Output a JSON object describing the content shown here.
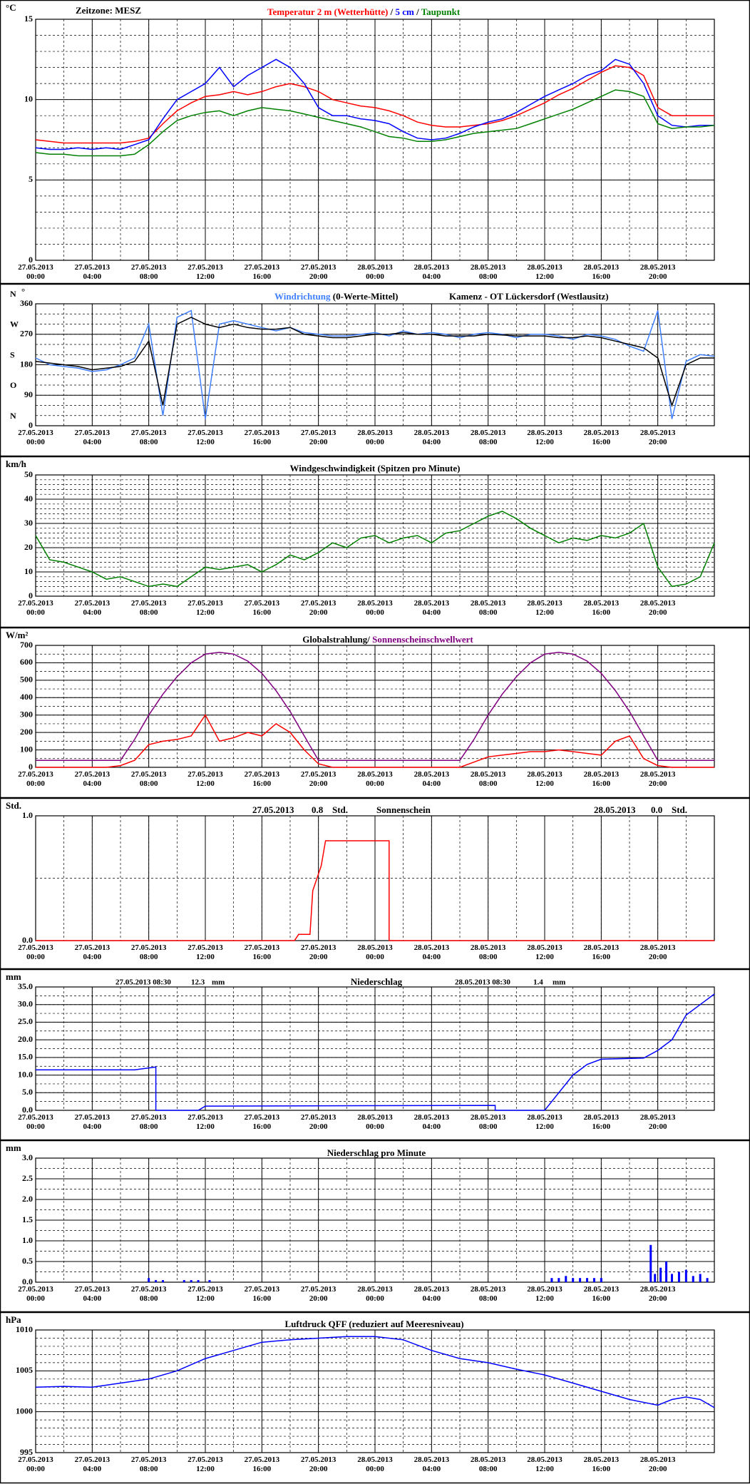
{
  "xaxis": {
    "xlim": [
      0,
      48
    ],
    "minor_step": 2,
    "xticks": [
      {
        "value": 0,
        "label": "27.05.2013\n00:00"
      },
      {
        "value": 4,
        "label": "27.05.2013\n04:00"
      },
      {
        "value": 8,
        "label": "27.05.2013\n08:00"
      },
      {
        "value": 12,
        "label": "27.05.2013\n12:00"
      },
      {
        "value": 16,
        "label": "27.05.2013\n16:00"
      },
      {
        "value": 20,
        "label": "27.05.2013\n20:00"
      },
      {
        "value": 24,
        "label": "28.05.2013\n00:00"
      },
      {
        "value": 28,
        "label": "28.05.2013\n04:00"
      },
      {
        "value": 32,
        "label": "28.05.2013\n08:00"
      },
      {
        "value": 36,
        "label": "28.05.2013\n12:00"
      },
      {
        "value": 40,
        "label": "28.05.2013\n16:00"
      },
      {
        "value": 44,
        "label": "28.05.2013\n20:00"
      }
    ]
  },
  "chart_data": [
    {
      "type": "line",
      "unit": "°C",
      "timezone": "Zeitzone: MESZ",
      "legend_separator": "/",
      "ylim": [
        0,
        15
      ],
      "yticks": [
        0,
        5,
        10,
        15
      ],
      "minor_grid_step": 1,
      "x": [
        0,
        1,
        2,
        3,
        4,
        5,
        6,
        7,
        8,
        9,
        10,
        11,
        12,
        13,
        14,
        15,
        16,
        17,
        18,
        19,
        20,
        21,
        22,
        23,
        24,
        25,
        26,
        27,
        28,
        29,
        30,
        31,
        32,
        33,
        34,
        35,
        36,
        37,
        38,
        39,
        40,
        41,
        42,
        43,
        44,
        45,
        46,
        47,
        48
      ],
      "series": [
        {
          "name": "Temperatur 2 m (Wetterhütte)",
          "color": "#ff0000",
          "values": [
            7.5,
            7.4,
            7.3,
            7.3,
            7.3,
            7.3,
            7.3,
            7.4,
            7.6,
            8.5,
            9.3,
            9.8,
            10.2,
            10.3,
            10.5,
            10.3,
            10.5,
            10.8,
            11.0,
            10.8,
            10.5,
            10.0,
            9.8,
            9.6,
            9.5,
            9.3,
            9.0,
            8.6,
            8.4,
            8.3,
            8.3,
            8.4,
            8.5,
            8.7,
            9.0,
            9.4,
            9.8,
            10.3,
            10.7,
            11.2,
            11.7,
            12.1,
            12.0,
            11.5,
            9.5,
            9.0,
            9.0,
            9.0,
            9.0
          ]
        },
        {
          "name": "5 cm",
          "color": "#0000ff",
          "values": [
            7.0,
            6.9,
            6.9,
            7.0,
            6.9,
            7.0,
            6.9,
            7.2,
            7.5,
            8.8,
            10.0,
            10.5,
            11.0,
            12.0,
            10.8,
            11.5,
            12.0,
            12.5,
            12.0,
            11.0,
            9.5,
            9.0,
            9.0,
            8.8,
            8.7,
            8.5,
            8.0,
            7.6,
            7.5,
            7.6,
            7.9,
            8.3,
            8.6,
            8.8,
            9.2,
            9.7,
            10.2,
            10.6,
            11.0,
            11.5,
            11.8,
            12.5,
            12.2,
            11.0,
            9.0,
            8.4,
            8.3,
            8.4,
            8.4
          ]
        },
        {
          "name": "Taupunkt",
          "color": "#008000",
          "values": [
            6.7,
            6.6,
            6.6,
            6.5,
            6.5,
            6.5,
            6.5,
            6.6,
            7.2,
            8.0,
            8.7,
            9.0,
            9.2,
            9.3,
            9.0,
            9.3,
            9.5,
            9.4,
            9.3,
            9.1,
            8.9,
            8.7,
            8.5,
            8.3,
            8.0,
            7.7,
            7.6,
            7.4,
            7.4,
            7.5,
            7.7,
            7.9,
            8.0,
            8.1,
            8.2,
            8.5,
            8.8,
            9.1,
            9.4,
            9.8,
            10.2,
            10.6,
            10.5,
            10.2,
            8.5,
            8.2,
            8.3,
            8.3,
            8.4
          ]
        }
      ]
    },
    {
      "type": "line",
      "unit": "°",
      "station": "Kamenz - OT Lückersdorf (Westlausitz)",
      "ylim": [
        0,
        360
      ],
      "yticks": [
        0,
        90,
        180,
        270,
        360
      ],
      "minor_grid_step": 30,
      "direction_labels": [
        {
          "value": 0,
          "label": "N"
        },
        {
          "value": 90,
          "label": "O"
        },
        {
          "value": 180,
          "label": "S"
        },
        {
          "value": 270,
          "label": "W"
        },
        {
          "value": 360,
          "label": "N"
        }
      ],
      "x": [
        0,
        1,
        2,
        3,
        4,
        5,
        6,
        7,
        8,
        9,
        10,
        11,
        12,
        13,
        14,
        15,
        16,
        17,
        18,
        19,
        20,
        21,
        22,
        23,
        24,
        25,
        26,
        27,
        28,
        29,
        30,
        31,
        32,
        33,
        34,
        35,
        36,
        37,
        38,
        39,
        40,
        41,
        42,
        43,
        44,
        45,
        46,
        47,
        48
      ],
      "series": [
        {
          "name": "Windrichtung",
          "color": "#4080ff",
          "values": [
            200,
            180,
            175,
            170,
            160,
            165,
            180,
            200,
            300,
            30,
            320,
            340,
            20,
            300,
            310,
            300,
            290,
            280,
            290,
            275,
            270,
            265,
            265,
            270,
            275,
            265,
            280,
            270,
            275,
            270,
            260,
            270,
            275,
            270,
            260,
            270,
            270,
            265,
            255,
            270,
            265,
            255,
            235,
            220,
            340,
            20,
            190,
            210,
            205
          ]
        },
        {
          "name": "(0-Werte-Mittel)",
          "color": "#000000",
          "values": [
            190,
            185,
            180,
            175,
            165,
            170,
            175,
            190,
            250,
            60,
            300,
            320,
            300,
            290,
            300,
            290,
            285,
            285,
            290,
            270,
            265,
            260,
            260,
            265,
            270,
            270,
            275,
            270,
            270,
            265,
            265,
            265,
            270,
            268,
            265,
            265,
            265,
            260,
            260,
            265,
            260,
            250,
            240,
            230,
            200,
            60,
            180,
            200,
            200
          ]
        }
      ]
    },
    {
      "type": "line",
      "unit": "km/h",
      "title": "Windgeschwindigkeit (Spitzen pro Minute)",
      "ylim": [
        0,
        50
      ],
      "yticks": [
        0,
        10,
        20,
        30,
        40,
        50
      ],
      "minor_grid_step": 2,
      "x": [
        0,
        1,
        2,
        3,
        4,
        5,
        6,
        7,
        8,
        9,
        10,
        11,
        12,
        13,
        14,
        15,
        16,
        17,
        18,
        19,
        20,
        21,
        22,
        23,
        24,
        25,
        26,
        27,
        28,
        29,
        30,
        31,
        32,
        33,
        34,
        35,
        36,
        37,
        38,
        39,
        40,
        41,
        42,
        43,
        44,
        45,
        46,
        47,
        48
      ],
      "series": [
        {
          "name": "Windgeschwindigkeit",
          "color": "#008000",
          "values": [
            25,
            15,
            14,
            12,
            10,
            7,
            8,
            6,
            4,
            5,
            4,
            8,
            12,
            11,
            12,
            13,
            10,
            13,
            17,
            15,
            18,
            22,
            20,
            24,
            25,
            22,
            24,
            25,
            22,
            26,
            27,
            30,
            33,
            35,
            32,
            28,
            25,
            22,
            24,
            23,
            25,
            24,
            26,
            30,
            12,
            4,
            5,
            8,
            22
          ]
        }
      ]
    },
    {
      "type": "line",
      "unit": "W/m²",
      "legend_separator": "/",
      "ylim": [
        0,
        700
      ],
      "yticks": [
        0,
        100,
        200,
        300,
        400,
        500,
        600,
        700
      ],
      "minor_grid_step": 50,
      "x": [
        0,
        1,
        2,
        3,
        4,
        5,
        6,
        7,
        8,
        9,
        10,
        11,
        12,
        13,
        14,
        15,
        16,
        17,
        18,
        19,
        20,
        21,
        22,
        23,
        24,
        25,
        26,
        27,
        28,
        29,
        30,
        31,
        32,
        33,
        34,
        35,
        36,
        37,
        38,
        39,
        40,
        41,
        42,
        43,
        44,
        45,
        46,
        47,
        48
      ],
      "series": [
        {
          "name": "Globalstrahlung",
          "color": "#ff0000",
          "name_color": "#000000",
          "values": [
            0,
            0,
            0,
            0,
            0,
            0,
            10,
            40,
            130,
            150,
            160,
            180,
            300,
            150,
            170,
            200,
            180,
            250,
            200,
            100,
            20,
            0,
            0,
            0,
            0,
            0,
            0,
            0,
            0,
            0,
            0,
            30,
            60,
            70,
            80,
            90,
            90,
            100,
            90,
            80,
            70,
            150,
            180,
            50,
            10,
            0,
            0,
            0,
            0
          ]
        },
        {
          "name": "Sonnenscheinschwellwert",
          "color": "#800080",
          "values": [
            40,
            40,
            40,
            40,
            40,
            40,
            40,
            160,
            300,
            420,
            520,
            600,
            650,
            660,
            650,
            610,
            540,
            440,
            320,
            180,
            40,
            40,
            40,
            40,
            40,
            40,
            40,
            40,
            40,
            40,
            40,
            160,
            300,
            420,
            520,
            600,
            650,
            660,
            650,
            610,
            540,
            440,
            320,
            180,
            40,
            40,
            40,
            40,
            40
          ]
        }
      ]
    },
    {
      "type": "line",
      "unit": "Std.",
      "title": "Sonnenschein",
      "summary": [
        {
          "date": "27.05.2013",
          "value": "0.8",
          "unit": "Std."
        },
        {
          "date": "28.05.2013",
          "value": "0.0",
          "unit": "Std."
        }
      ],
      "ylim": [
        0,
        1
      ],
      "yticks": [
        {
          "value": 0,
          "label": "0.0"
        },
        {
          "value": 1,
          "label": "1.0"
        }
      ],
      "minor_grid_step": 0.5,
      "series": [
        {
          "name": "Sonnenschein",
          "color": "#ff0000",
          "x": [
            0,
            18.3,
            18.6,
            19.4,
            19.6,
            20.2,
            20.5,
            25,
            25,
            48
          ],
          "values": [
            0,
            0,
            0.05,
            0.05,
            0.4,
            0.6,
            0.8,
            0.8,
            0,
            0
          ]
        }
      ]
    },
    {
      "type": "line",
      "unit": "mm",
      "title": "Niederschlag",
      "summary": [
        {
          "date": "27.05.2013 08:30",
          "value": "12.3",
          "unit": "mm"
        },
        {
          "date": "28.05.2013 08:30",
          "value": "1.4",
          "unit": "mm"
        }
      ],
      "ylim": [
        0,
        35
      ],
      "yticks": [
        {
          "value": 0,
          "label": "0.0"
        },
        {
          "value": 5,
          "label": "5.0"
        },
        {
          "value": 10,
          "label": "10.0"
        },
        {
          "value": 15,
          "label": "15.0"
        },
        {
          "value": 20,
          "label": "20.0"
        },
        {
          "value": 25,
          "label": "25.0"
        },
        {
          "value": 30,
          "label": "30.0"
        },
        {
          "value": 35,
          "label": "35.0"
        }
      ],
      "minor_grid_step": 2.5,
      "series": [
        {
          "name": "Niederschlag",
          "color": "#0000ff",
          "x": [
            0,
            7,
            8.5,
            8.5,
            11.5,
            12,
            32.5,
            32.5,
            36,
            37,
            38,
            39,
            40,
            43,
            44,
            45,
            46,
            47,
            48
          ],
          "values": [
            11.5,
            11.5,
            12.3,
            0,
            0,
            1.2,
            1.4,
            0,
            0,
            5,
            10,
            13,
            14.5,
            14.8,
            17,
            20,
            27,
            30,
            33
          ]
        }
      ]
    },
    {
      "type": "bar",
      "unit": "mm",
      "title": "Niederschlag pro Minute",
      "ylim": [
        0,
        3
      ],
      "yticks": [
        {
          "value": 0,
          "label": "0.0"
        },
        {
          "value": 0.5,
          "label": "0.5"
        },
        {
          "value": 1,
          "label": "1.0"
        },
        {
          "value": 1.5,
          "label": "1.5"
        },
        {
          "value": 2,
          "label": "2.0"
        },
        {
          "value": 2.5,
          "label": "2.5"
        },
        {
          "value": 3,
          "label": "3.0"
        }
      ],
      "minor_grid_step": 0.25,
      "series": [
        {
          "name": "Niederschlag pro Minute",
          "color": "#0000ff",
          "x": [
            8.0,
            8.5,
            9.0,
            10.5,
            11.0,
            11.5,
            12.3,
            36.5,
            37.0,
            37.5,
            38.0,
            38.5,
            39.0,
            39.5,
            40.0,
            43.5,
            43.8,
            44.2,
            44.6,
            45.0,
            45.5,
            46.0,
            46.5,
            47.0,
            47.5
          ],
          "values": [
            0.1,
            0.05,
            0.05,
            0.05,
            0.05,
            0.05,
            0.05,
            0.1,
            0.1,
            0.15,
            0.1,
            0.1,
            0.1,
            0.1,
            0.1,
            0.9,
            0.2,
            0.35,
            0.5,
            0.2,
            0.25,
            0.3,
            0.15,
            0.2,
            0.1
          ]
        }
      ]
    },
    {
      "type": "line",
      "unit": "hPa",
      "title": "Luftdruck QFF (reduziert auf Meeresniveau)",
      "ylim": [
        995,
        1010
      ],
      "yticks": [
        995,
        1000,
        1005,
        1010
      ],
      "minor_grid_step": 1,
      "series": [
        {
          "name": "Luftdruck",
          "color": "#0000ff",
          "x": [
            0,
            2,
            4,
            6,
            8,
            10,
            12,
            14,
            16,
            18,
            20,
            22,
            24,
            26,
            28,
            30,
            32,
            34,
            36,
            38,
            40,
            42,
            44,
            45,
            46,
            47,
            48
          ],
          "values": [
            1003,
            1003.1,
            1003,
            1003.5,
            1004,
            1005,
            1006.5,
            1007.5,
            1008.5,
            1008.8,
            1009,
            1009.2,
            1009.2,
            1008.8,
            1007.5,
            1006.5,
            1006,
            1005.2,
            1004.5,
            1003.5,
            1002.5,
            1001.5,
            1000.8,
            1001.5,
            1001.8,
            1001.5,
            1000.5
          ]
        }
      ]
    }
  ]
}
